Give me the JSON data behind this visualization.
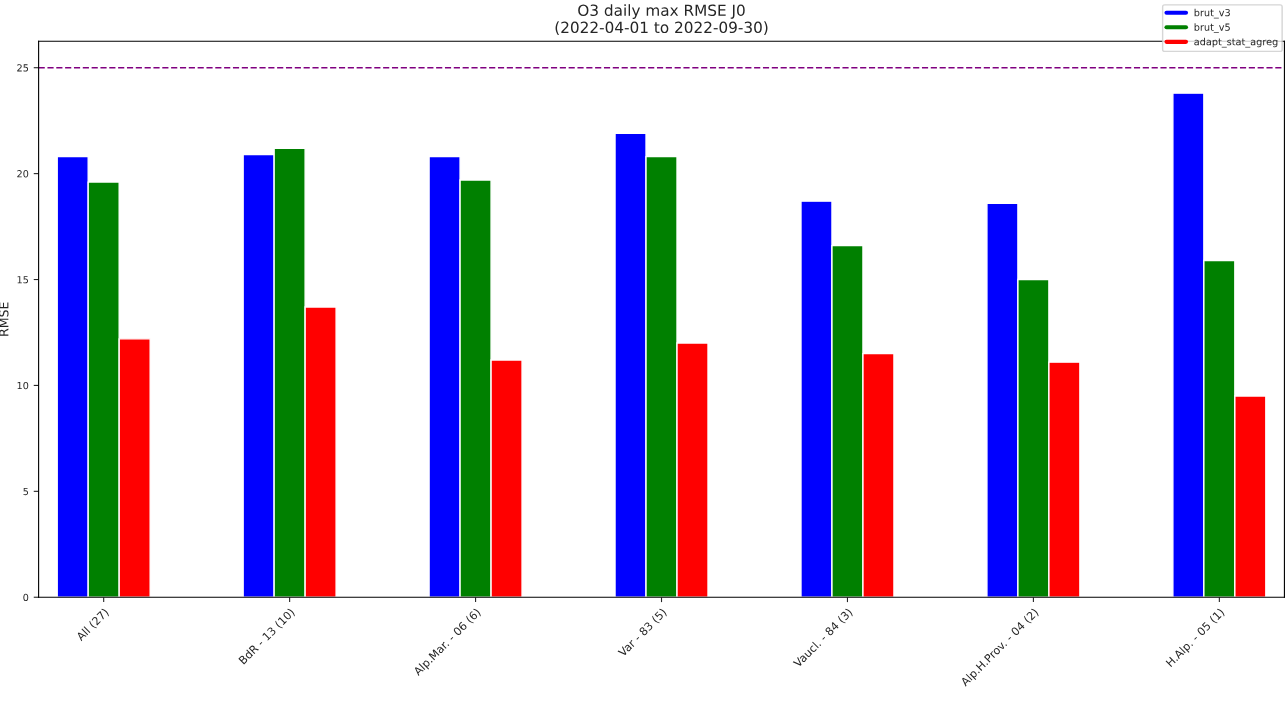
{
  "chart_data": {
    "type": "bar",
    "title": "O3 daily max RMSE J0\n(2022-04-01 to 2022-09-30)",
    "ylabel": "RMSE",
    "categories": [
      "All (27)",
      "BdR - 13 (10)",
      "Alp.Mar. - 06 (6)",
      "Var - 83 (5)",
      "Vaucl. - 84 (3)",
      "Alp.H.Prov. - 04 (2)",
      "H.Alp. - 05 (1)"
    ],
    "series": [
      {
        "name": "brut_v3",
        "color": "#0000ff",
        "values": [
          20.8,
          20.9,
          20.8,
          21.9,
          18.7,
          18.6,
          23.8
        ]
      },
      {
        "name": "brut_v5",
        "color": "#008000",
        "values": [
          19.6,
          21.2,
          19.7,
          20.8,
          16.6,
          15.0,
          15.9
        ]
      },
      {
        "name": "adapt_stat_agreg",
        "color": "#ff0000",
        "values": [
          12.2,
          13.7,
          11.2,
          12.0,
          11.5,
          11.1,
          9.5
        ]
      }
    ],
    "ylim": [
      0,
      26.25
    ],
    "yticks": [
      0,
      5,
      10,
      15,
      20,
      25
    ],
    "ref_lines": [
      {
        "axis": "y",
        "value": 25,
        "color": "#800080",
        "line_style": "dashed"
      }
    ],
    "grid": false,
    "legend": "top right"
  }
}
